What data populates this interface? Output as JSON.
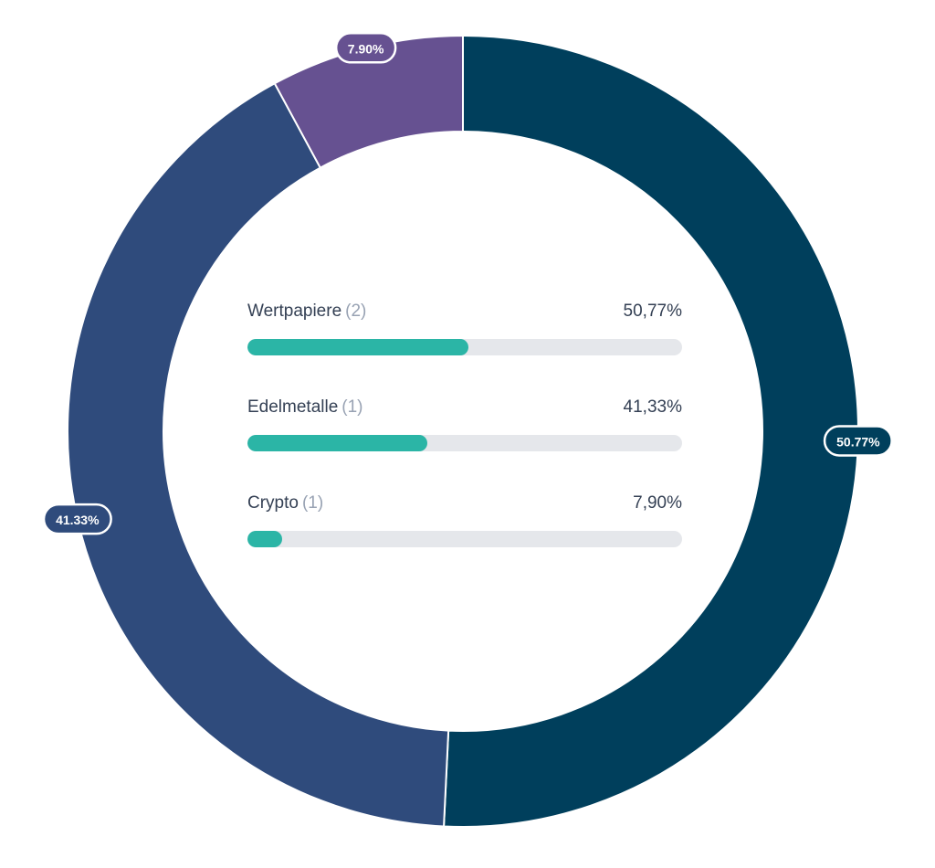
{
  "chart_data": {
    "type": "pie",
    "variant": "donut",
    "slices": [
      {
        "name": "Wertpapiere",
        "value": 50.77,
        "label": "50.77%",
        "color": "#003f5c"
      },
      {
        "name": "Edelmetalle",
        "value": 41.33,
        "label": "41.33%",
        "color": "#2f4b7c"
      },
      {
        "name": "Crypto",
        "value": 7.9,
        "label": "7.90%",
        "color": "#665191"
      }
    ],
    "slice_border_color": "#ffffff"
  },
  "legend": {
    "items": [
      {
        "name": "Wertpapiere",
        "count": "(2)",
        "percent_text": "50,77%",
        "fill_fraction": 0.5077
      },
      {
        "name": "Edelmetalle",
        "count": "(1)",
        "percent_text": "41,33%",
        "fill_fraction": 0.4133
      },
      {
        "name": "Crypto",
        "count": "(1)",
        "percent_text": "7,90%",
        "fill_fraction": 0.079
      }
    ],
    "bar_fill_color": "#2bb5a6",
    "bar_track_color": "#e5e7eb"
  }
}
